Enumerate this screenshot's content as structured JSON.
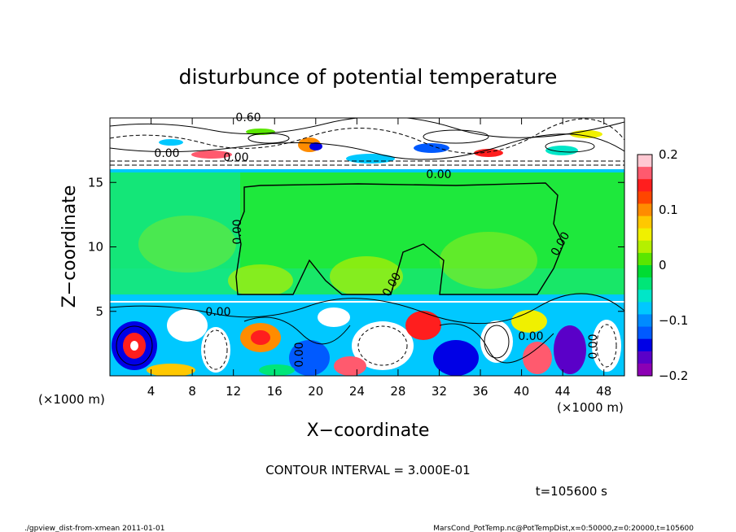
{
  "chart_data": {
    "type": "heatmap",
    "title": "disturbunce of potential temperature",
    "xlabel": "X−coordinate",
    "ylabel": "Z−coordinate",
    "x_unit": "(×1000 m)",
    "y_unit": "(×1000 m)",
    "x_ticks": [
      4,
      8,
      12,
      16,
      20,
      24,
      28,
      32,
      36,
      40,
      44,
      48
    ],
    "y_ticks": [
      5,
      10,
      15
    ],
    "xlim": [
      0,
      50
    ],
    "ylim": [
      0,
      20
    ],
    "colorbar": {
      "ticks": [
        "0.2",
        "0.1",
        "0",
        "−0.1",
        "−0.2"
      ],
      "range": [
        -0.2,
        0.2
      ],
      "colors": [
        "#ffc8d2",
        "#ff5a6e",
        "#ff1e1e",
        "#ff4600",
        "#ff8c00",
        "#ffc800",
        "#f0f000",
        "#b4f000",
        "#5ae600",
        "#00dc32",
        "#00e678",
        "#00e6c8",
        "#00c8ff",
        "#008cff",
        "#005aff",
        "#0000e6",
        "#5a00c8",
        "#8c00b4"
      ]
    },
    "contour_labels": [
      "0.60",
      "0.00",
      "0.00",
      "0.00",
      "0.00",
      "0.00",
      "0.00",
      "0.00",
      "0.00",
      "0.00",
      "0.00"
    ],
    "layers": [
      {
        "z_range": [
          16,
          20
        ],
        "value": "mixed"
      },
      {
        "z_range": [
          6,
          16
        ],
        "value": 0.0
      },
      {
        "z_range": [
          0,
          6
        ],
        "value": "mixed"
      }
    ]
  },
  "contour_interval": "CONTOUR INTERVAL = 3.000E-01",
  "time_label": "t=105600 s",
  "footer_left": "./gpview_dist-from-xmean  2011-01-01",
  "footer_right": "MarsCond_PotTemp.nc@PotTempDist,x=0:50000,z=0:20000,t=105600"
}
